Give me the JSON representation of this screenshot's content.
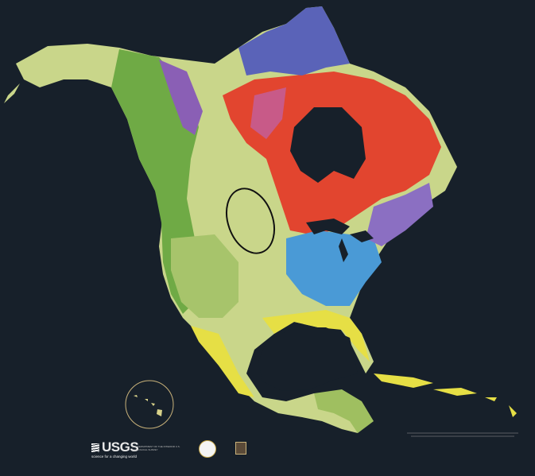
{
  "map": {
    "subject": "Geologic map of North America",
    "background_color": "#17202a",
    "colors": {
      "canadian_shield": "#e2452f",
      "arctic_platform": "#5a63b8",
      "appalachians": "#4a9ad6",
      "interior_plains": "#c8d88a",
      "cordillera": "#7bb04a",
      "coastal_plain": "#e9e24a",
      "water": "#17202a"
    }
  },
  "inset": {
    "label": "Hawaiian Islands"
  },
  "footer": {
    "usgs_name": "USGS",
    "usgs_tagline": "science for a changing world",
    "department": "U.S. DEPARTMENT OF THE INTERIOR U.S. GEOLOGICAL SURVEY"
  }
}
